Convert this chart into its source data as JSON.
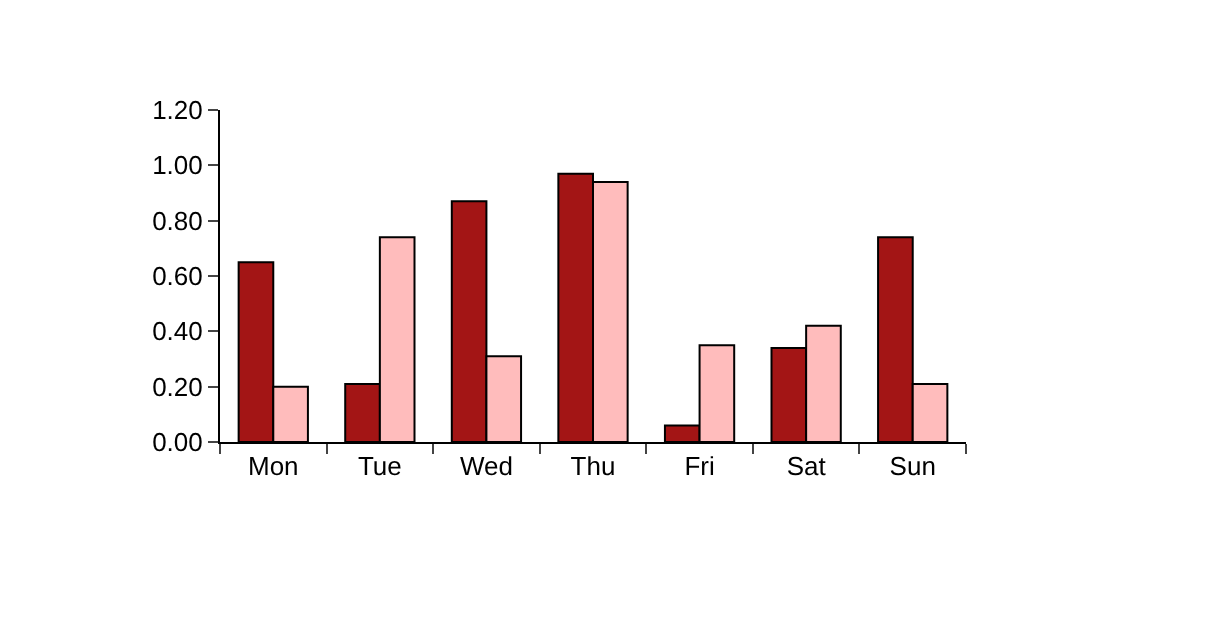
{
  "chart_data": {
    "type": "bar",
    "categories": [
      "Mon",
      "Tue",
      "Wed",
      "Thu",
      "Fri",
      "Sat",
      "Sun"
    ],
    "series": [
      {
        "color": "#a31515",
        "values": [
          0.65,
          0.21,
          0.87,
          0.97,
          0.06,
          0.34,
          0.74
        ]
      },
      {
        "color": "#ffbcbc",
        "values": [
          0.2,
          0.74,
          0.31,
          0.94,
          0.35,
          0.42,
          0.21
        ]
      }
    ],
    "ylim": [
      0,
      1.2
    ],
    "yticks": [
      {
        "value": 0,
        "label": "0.00"
      },
      {
        "value": 0.2,
        "label": "0.20"
      },
      {
        "value": 0.4,
        "label": "0.40"
      },
      {
        "value": 0.6,
        "label": "0.60"
      },
      {
        "value": 0.8,
        "label": "0.80"
      },
      {
        "value": 1.0,
        "label": "1.00"
      },
      {
        "value": 1.2,
        "label": "1.20"
      }
    ]
  }
}
